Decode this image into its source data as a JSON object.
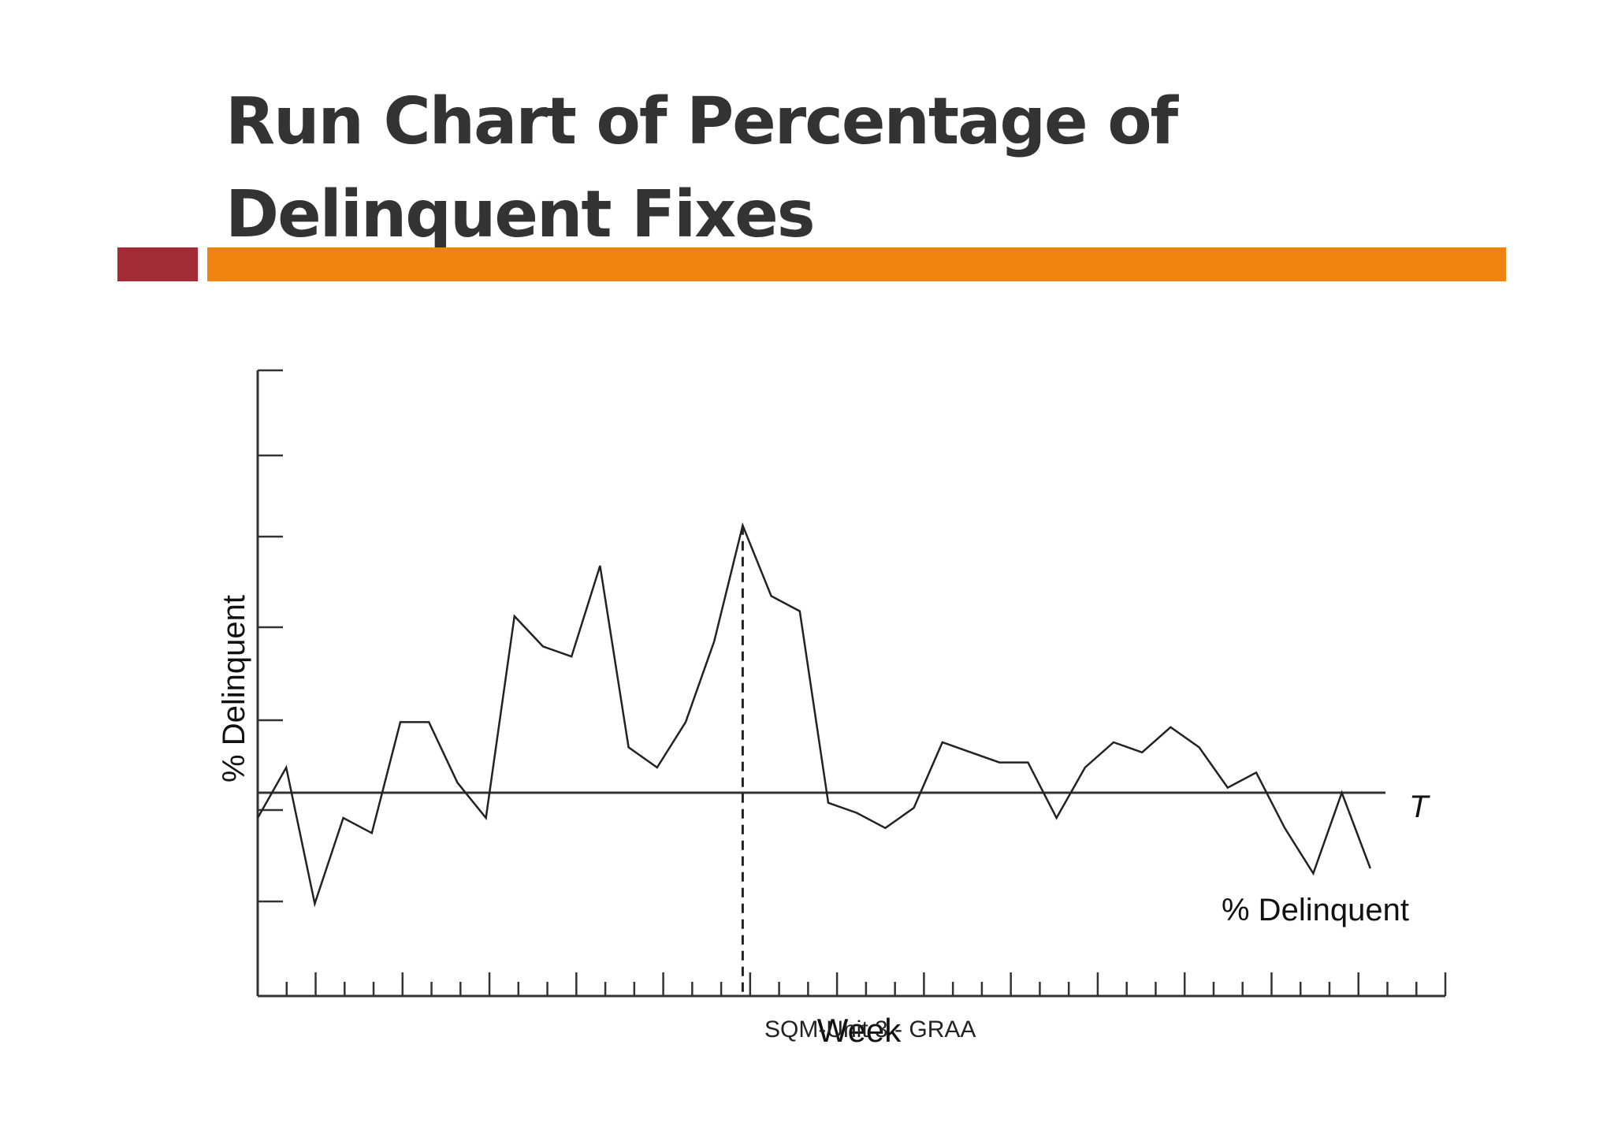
{
  "slide": {
    "title_line1": "Run Chart of Percentage of",
    "title_line2": "Delinquent Fixes",
    "footer": "SQM-Unit 3 - GRAA",
    "colors": {
      "accent_left": "#A32B35",
      "accent_right": "#EE830F",
      "title": "#333333"
    }
  },
  "chart_data": {
    "type": "line",
    "title": "",
    "xlabel": "Week",
    "ylabel": "% Delinquent",
    "series": [
      {
        "name": "% Delinquent",
        "values": [
          -0.5,
          0.5,
          -2.2,
          -0.5,
          -0.8,
          1.4,
          1.4,
          0.2,
          -0.5,
          3.5,
          2.9,
          2.7,
          4.5,
          0.9,
          0.5,
          1.4,
          3.0,
          5.3,
          3.9,
          3.6,
          -0.2,
          -0.4,
          -0.7,
          -0.3,
          1.0,
          0.8,
          0.6,
          0.6,
          -0.5,
          0.5,
          1.0,
          0.8,
          1.3,
          0.9,
          0.1,
          0.4,
          -0.7,
          -1.6,
          0.0,
          -1.5
        ]
      }
    ],
    "reference_line": {
      "label": "T",
      "y": 0
    },
    "marker": {
      "style": "dashed vertical line",
      "week": 17
    },
    "x_ticks": 42,
    "y_ticks": 7,
    "grid": false
  }
}
